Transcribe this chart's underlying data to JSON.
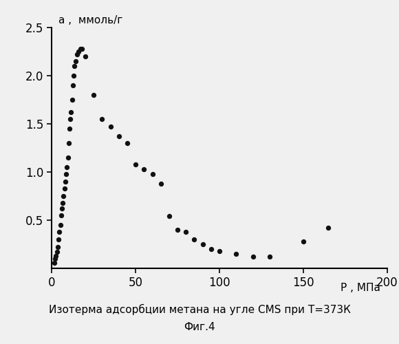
{
  "title_line1": "Изотерма адсорбции метана на угле CMS при T=373К",
  "title_line2": "Фиг.4",
  "xlabel": "P , МПа",
  "ylabel": "а ,  ммоль/г",
  "xlim": [
    0,
    200
  ],
  "ylim": [
    0,
    2.5
  ],
  "xticks": [
    0,
    50,
    100,
    150,
    200
  ],
  "ytick_labels": [
    "0.5",
    "1.0",
    "1.5",
    "2.0",
    "2.5"
  ],
  "ytick_values": [
    0.5,
    1.0,
    1.5,
    2.0,
    2.5
  ],
  "background_color": "#f0f0f0",
  "scatter_color": "#111111",
  "scatter_size": 28,
  "x_data": [
    1.5,
    2,
    2.5,
    3,
    3.5,
    4,
    4.5,
    5,
    5.5,
    6,
    6.5,
    7,
    7.5,
    8,
    8.5,
    9,
    9.5,
    10,
    10.5,
    11,
    11.5,
    12,
    12.5,
    13,
    13.5,
    14,
    15,
    16,
    17,
    18,
    20,
    25,
    30,
    35,
    40,
    45,
    50,
    55,
    60,
    65,
    70,
    75,
    80,
    85,
    90,
    95,
    100,
    110,
    120,
    130,
    150,
    165
  ],
  "y_data": [
    0.06,
    0.1,
    0.13,
    0.17,
    0.22,
    0.3,
    0.38,
    0.45,
    0.55,
    0.62,
    0.68,
    0.75,
    0.83,
    0.9,
    0.98,
    1.05,
    1.15,
    1.3,
    1.45,
    1.55,
    1.62,
    1.75,
    1.9,
    2.0,
    2.1,
    2.15,
    2.22,
    2.25,
    2.28,
    2.28,
    2.2,
    1.8,
    1.55,
    1.47,
    1.37,
    1.3,
    1.08,
    1.03,
    0.98,
    0.88,
    0.54,
    0.4,
    0.38,
    0.3,
    0.25,
    0.2,
    0.18,
    0.15,
    0.12,
    0.12,
    0.28,
    0.42
  ]
}
